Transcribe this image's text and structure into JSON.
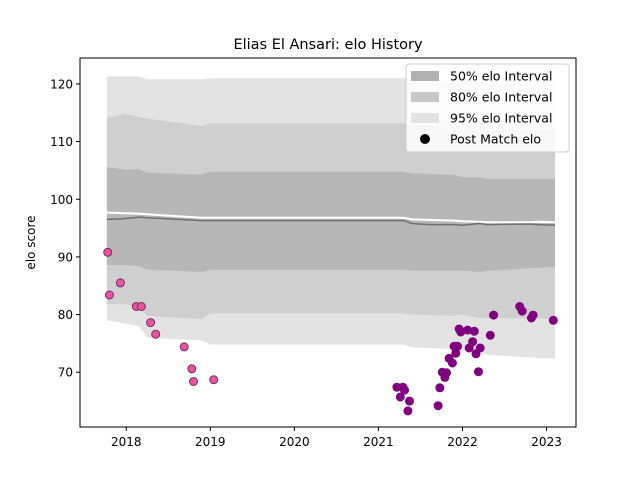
{
  "chart_data": {
    "type": "area",
    "title": "Elias El Ansari: elo History",
    "xlabel": "",
    "ylabel": "elo score",
    "xlim": [
      2017.45,
      2023.35
    ],
    "ylim": [
      60.5,
      124.5
    ],
    "x_ticks": [
      2018,
      2019,
      2020,
      2021,
      2022,
      2023
    ],
    "x_tick_labels": [
      "2018",
      "2019",
      "2020",
      "2021",
      "2022",
      "2023"
    ],
    "y_ticks": [
      70,
      80,
      90,
      100,
      110,
      120
    ],
    "y_tick_labels": [
      "70",
      "80",
      "90",
      "100",
      "110",
      "120"
    ],
    "grid": false,
    "legend_position": "top-right",
    "legend": [
      {
        "label": "50% elo Interval",
        "kind": "patch",
        "color": "#b0b0b0"
      },
      {
        "label": "80% elo Interval",
        "kind": "patch",
        "color": "#c8c8c8"
      },
      {
        "label": "95% elo Interval",
        "kind": "patch",
        "color": "#e3e3e3"
      },
      {
        "label": "Post Match elo",
        "kind": "marker",
        "color": "#000000"
      }
    ],
    "bands": [
      {
        "name": "95% elo Interval",
        "color": "#e3e3e3",
        "x": [
          2017.77,
          2018.15,
          2018.25,
          2018.9,
          2019.0,
          2021.3,
          2021.4,
          2021.9,
          2022.0,
          2022.2,
          2022.3,
          2023.0,
          2023.1
        ],
        "upper": [
          121.3,
          121.3,
          120.8,
          120.8,
          121.0,
          121.0,
          120.6,
          120.6,
          120.4,
          120.5,
          120.0,
          120.0,
          120.0
        ],
        "lower": [
          79.0,
          78.0,
          76.0,
          75.5,
          74.8,
          74.8,
          74.3,
          74.0,
          73.7,
          73.7,
          73.0,
          72.4,
          72.4
        ]
      },
      {
        "name": "80% elo Interval",
        "color": "#cfcfcf",
        "x": [
          2017.77,
          2018.0,
          2018.15,
          2018.25,
          2018.9,
          2019.0,
          2021.3,
          2021.4,
          2021.9,
          2022.0,
          2022.2,
          2022.3,
          2023.0,
          2023.1
        ],
        "upper": [
          114.2,
          114.8,
          114.3,
          114.0,
          112.7,
          113.2,
          113.2,
          112.8,
          112.6,
          112.2,
          112.5,
          111.8,
          112.0,
          112.0
        ],
        "lower": [
          81.8,
          81.8,
          81.2,
          79.8,
          79.2,
          80.2,
          80.2,
          80.0,
          79.8,
          80.0,
          79.4,
          79.4,
          79.3,
          79.3
        ]
      },
      {
        "name": "50% elo Interval",
        "color": "#b7b7b7",
        "x": [
          2017.77,
          2018.0,
          2018.15,
          2018.25,
          2018.9,
          2019.0,
          2021.3,
          2021.4,
          2021.9,
          2022.0,
          2022.2,
          2022.3,
          2023.0,
          2023.1
        ],
        "upper": [
          105.6,
          105.1,
          105.3,
          104.6,
          104.3,
          104.8,
          104.8,
          104.5,
          104.2,
          103.8,
          103.8,
          103.5,
          103.5,
          103.5
        ],
        "lower": [
          88.6,
          88.6,
          88.4,
          87.8,
          87.4,
          87.8,
          87.8,
          87.6,
          87.6,
          87.6,
          87.4,
          87.6,
          88.2,
          88.2
        ]
      }
    ],
    "lines": [
      {
        "name": "mean",
        "color": "#ffffff",
        "width": 2,
        "x": [
          2017.77,
          2017.95,
          2018.15,
          2018.9,
          2019.0,
          2021.3,
          2021.4,
          2021.9,
          2022.0,
          2022.2,
          2022.3,
          2022.8,
          2022.9,
          2023.1
        ],
        "y": [
          97.7,
          97.6,
          97.5,
          96.8,
          96.8,
          96.8,
          96.5,
          96.3,
          96.2,
          96.1,
          96.0,
          96.0,
          96.1,
          96.0
        ]
      },
      {
        "name": "median",
        "color": "#6f6f6f",
        "width": 1.5,
        "x": [
          2017.77,
          2017.95,
          2018.15,
          2018.25,
          2018.9,
          2019.0,
          2021.3,
          2021.4,
          2021.6,
          2021.9,
          2022.0,
          2022.2,
          2022.3,
          2022.8,
          2022.9,
          2023.1
        ],
        "y": [
          96.5,
          96.6,
          96.9,
          96.8,
          96.3,
          96.3,
          96.3,
          95.8,
          95.6,
          95.6,
          95.5,
          95.8,
          95.6,
          95.7,
          95.6,
          95.5
        ]
      }
    ],
    "series": [
      {
        "color": "#e8559b",
        "edge": "#7a2a66",
        "x": [
          2017.78,
          2017.8,
          2017.93,
          2018.12,
          2018.18,
          2018.29,
          2018.35,
          2018.69,
          2018.78,
          2018.8,
          2019.04
        ],
        "y": [
          90.8,
          83.4,
          85.5,
          81.4,
          81.4,
          78.6,
          76.6,
          74.4,
          70.6,
          68.4,
          68.7
        ]
      },
      {
        "color": "#800080",
        "edge": "#800080",
        "x": [
          2021.22,
          2021.26,
          2021.29,
          2021.31,
          2021.35,
          2021.37,
          2021.71,
          2021.73,
          2021.76,
          2021.79,
          2021.81,
          2021.84,
          2021.88,
          2021.9,
          2021.92,
          2021.94,
          2021.96,
          2021.98,
          2022.06,
          2022.08,
          2022.12,
          2022.14,
          2022.16,
          2022.19,
          2022.21,
          2022.33,
          2022.37,
          2022.68,
          2022.71,
          2022.82,
          2022.84,
          2023.08
        ],
        "y": [
          67.4,
          65.7,
          67.4,
          66.9,
          63.3,
          65.0,
          64.2,
          67.3,
          70.0,
          69.1,
          69.9,
          72.4,
          71.6,
          74.5,
          73.3,
          74.5,
          77.5,
          77.0,
          77.3,
          74.2,
          75.3,
          77.1,
          73.2,
          70.1,
          74.2,
          76.4,
          79.9,
          81.4,
          80.6,
          79.4,
          79.9,
          79.0
        ]
      }
    ]
  }
}
